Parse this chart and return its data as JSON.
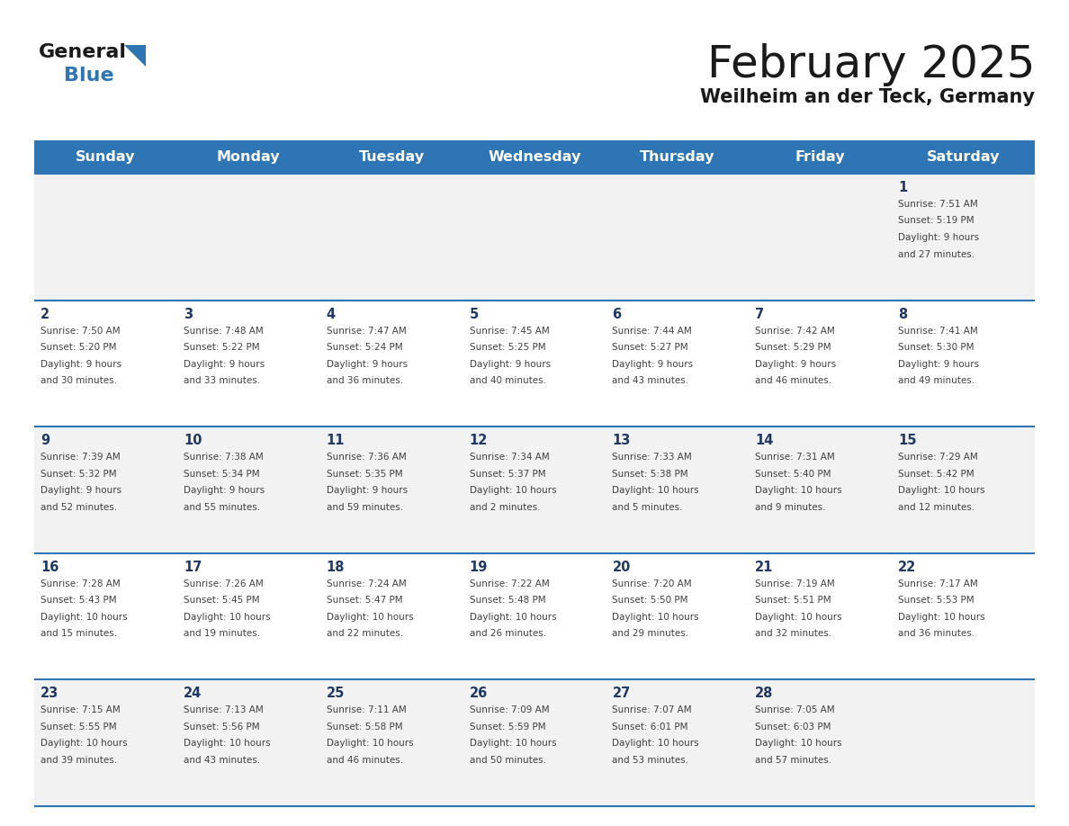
{
  "title": "February 2025",
  "subtitle": "Weilheim an der Teck, Germany",
  "header_bg": "#2E75B6",
  "header_text_color": "#FFFFFF",
  "day_names": [
    "Sunday",
    "Monday",
    "Tuesday",
    "Wednesday",
    "Thursday",
    "Friday",
    "Saturday"
  ],
  "row_bg_odd": "#F2F2F2",
  "row_bg_even": "#FFFFFF",
  "cell_border_color": "#2E75B6",
  "day_number_color": "#1F3864",
  "info_text_color": "#404040",
  "weeks": [
    [
      {
        "day": null,
        "info": ""
      },
      {
        "day": null,
        "info": ""
      },
      {
        "day": null,
        "info": ""
      },
      {
        "day": null,
        "info": ""
      },
      {
        "day": null,
        "info": ""
      },
      {
        "day": null,
        "info": ""
      },
      {
        "day": 1,
        "info": "Sunrise: 7:51 AM\nSunset: 5:19 PM\nDaylight: 9 hours\nand 27 minutes."
      }
    ],
    [
      {
        "day": 2,
        "info": "Sunrise: 7:50 AM\nSunset: 5:20 PM\nDaylight: 9 hours\nand 30 minutes."
      },
      {
        "day": 3,
        "info": "Sunrise: 7:48 AM\nSunset: 5:22 PM\nDaylight: 9 hours\nand 33 minutes."
      },
      {
        "day": 4,
        "info": "Sunrise: 7:47 AM\nSunset: 5:24 PM\nDaylight: 9 hours\nand 36 minutes."
      },
      {
        "day": 5,
        "info": "Sunrise: 7:45 AM\nSunset: 5:25 PM\nDaylight: 9 hours\nand 40 minutes."
      },
      {
        "day": 6,
        "info": "Sunrise: 7:44 AM\nSunset: 5:27 PM\nDaylight: 9 hours\nand 43 minutes."
      },
      {
        "day": 7,
        "info": "Sunrise: 7:42 AM\nSunset: 5:29 PM\nDaylight: 9 hours\nand 46 minutes."
      },
      {
        "day": 8,
        "info": "Sunrise: 7:41 AM\nSunset: 5:30 PM\nDaylight: 9 hours\nand 49 minutes."
      }
    ],
    [
      {
        "day": 9,
        "info": "Sunrise: 7:39 AM\nSunset: 5:32 PM\nDaylight: 9 hours\nand 52 minutes."
      },
      {
        "day": 10,
        "info": "Sunrise: 7:38 AM\nSunset: 5:34 PM\nDaylight: 9 hours\nand 55 minutes."
      },
      {
        "day": 11,
        "info": "Sunrise: 7:36 AM\nSunset: 5:35 PM\nDaylight: 9 hours\nand 59 minutes."
      },
      {
        "day": 12,
        "info": "Sunrise: 7:34 AM\nSunset: 5:37 PM\nDaylight: 10 hours\nand 2 minutes."
      },
      {
        "day": 13,
        "info": "Sunrise: 7:33 AM\nSunset: 5:38 PM\nDaylight: 10 hours\nand 5 minutes."
      },
      {
        "day": 14,
        "info": "Sunrise: 7:31 AM\nSunset: 5:40 PM\nDaylight: 10 hours\nand 9 minutes."
      },
      {
        "day": 15,
        "info": "Sunrise: 7:29 AM\nSunset: 5:42 PM\nDaylight: 10 hours\nand 12 minutes."
      }
    ],
    [
      {
        "day": 16,
        "info": "Sunrise: 7:28 AM\nSunset: 5:43 PM\nDaylight: 10 hours\nand 15 minutes."
      },
      {
        "day": 17,
        "info": "Sunrise: 7:26 AM\nSunset: 5:45 PM\nDaylight: 10 hours\nand 19 minutes."
      },
      {
        "day": 18,
        "info": "Sunrise: 7:24 AM\nSunset: 5:47 PM\nDaylight: 10 hours\nand 22 minutes."
      },
      {
        "day": 19,
        "info": "Sunrise: 7:22 AM\nSunset: 5:48 PM\nDaylight: 10 hours\nand 26 minutes."
      },
      {
        "day": 20,
        "info": "Sunrise: 7:20 AM\nSunset: 5:50 PM\nDaylight: 10 hours\nand 29 minutes."
      },
      {
        "day": 21,
        "info": "Sunrise: 7:19 AM\nSunset: 5:51 PM\nDaylight: 10 hours\nand 32 minutes."
      },
      {
        "day": 22,
        "info": "Sunrise: 7:17 AM\nSunset: 5:53 PM\nDaylight: 10 hours\nand 36 minutes."
      }
    ],
    [
      {
        "day": 23,
        "info": "Sunrise: 7:15 AM\nSunset: 5:55 PM\nDaylight: 10 hours\nand 39 minutes."
      },
      {
        "day": 24,
        "info": "Sunrise: 7:13 AM\nSunset: 5:56 PM\nDaylight: 10 hours\nand 43 minutes."
      },
      {
        "day": 25,
        "info": "Sunrise: 7:11 AM\nSunset: 5:58 PM\nDaylight: 10 hours\nand 46 minutes."
      },
      {
        "day": 26,
        "info": "Sunrise: 7:09 AM\nSunset: 5:59 PM\nDaylight: 10 hours\nand 50 minutes."
      },
      {
        "day": 27,
        "info": "Sunrise: 7:07 AM\nSunset: 6:01 PM\nDaylight: 10 hours\nand 53 minutes."
      },
      {
        "day": 28,
        "info": "Sunrise: 7:05 AM\nSunset: 6:03 PM\nDaylight: 10 hours\nand 57 minutes."
      },
      {
        "day": null,
        "info": ""
      }
    ]
  ]
}
